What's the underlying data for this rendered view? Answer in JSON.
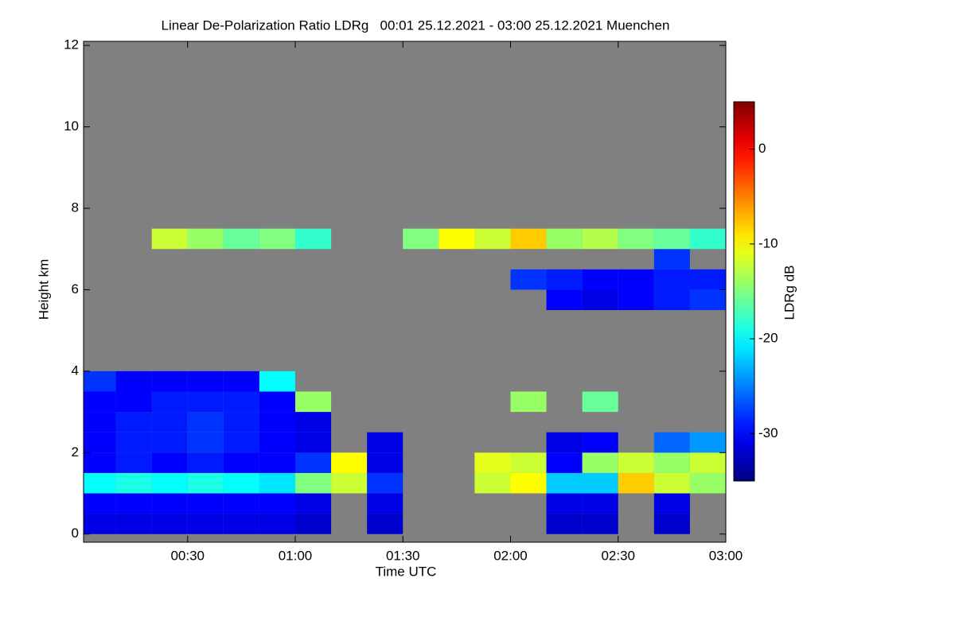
{
  "chart_data": {
    "type": "heatmap",
    "title": "Linear De-Polarization Ratio LDRg   00:01 25.12.2021 - 03:00 25.12.2021 Muenchen",
    "xlabel": "Time UTC",
    "ylabel": "Height km",
    "colorbar_label": "LDRg dB",
    "xlim": [
      1,
      180
    ],
    "ylim": [
      -0.2,
      12.1
    ],
    "zlim": [
      -35,
      5
    ],
    "xticks": [
      {
        "value": 30,
        "label": "00:30"
      },
      {
        "value": 60,
        "label": "01:00"
      },
      {
        "value": 90,
        "label": "01:30"
      },
      {
        "value": 120,
        "label": "02:00"
      },
      {
        "value": 150,
        "label": "02:30"
      },
      {
        "value": 180,
        "label": "03:00"
      }
    ],
    "yticks": [
      0,
      2,
      4,
      6,
      8,
      10,
      12
    ],
    "colorbar_ticks": [
      0,
      -10,
      -20,
      -30
    ],
    "colormap": "jet",
    "background_color": "#808080",
    "x_bins": [
      1,
      10,
      20,
      30,
      40,
      50,
      60,
      70,
      80,
      90,
      100,
      110,
      120,
      130,
      140,
      150,
      160,
      170,
      180
    ],
    "y_bins": [
      0,
      0.5,
      1,
      1.5,
      2,
      2.5,
      3,
      3.5,
      4,
      4.5,
      5,
      5.5,
      6,
      6.5,
      7,
      7.5,
      8
    ],
    "z": [
      [
        -31,
        -31,
        -31,
        -31,
        -31,
        -31,
        -32,
        null,
        -32,
        null,
        null,
        null,
        null,
        -32,
        -32,
        null,
        -32,
        null
      ],
      [
        -30,
        -30,
        -30,
        -30,
        -30,
        -30,
        -31,
        null,
        -31,
        null,
        null,
        null,
        null,
        -31,
        -31,
        null,
        -31,
        null
      ],
      [
        -20,
        -19,
        -20,
        -19,
        -20,
        -21,
        -15,
        -12,
        -28,
        null,
        null,
        -12,
        -10,
        -22,
        -22,
        -8,
        -12,
        -14
      ],
      [
        -30,
        -29,
        -30,
        -29,
        -30,
        -30,
        -28,
        -10,
        -31,
        null,
        null,
        -11,
        -12,
        -30,
        -14,
        -12,
        -14,
        -12
      ],
      [
        -30,
        -29,
        -29,
        -28,
        -29,
        -30,
        -31,
        null,
        -31,
        null,
        null,
        null,
        null,
        -31,
        -30,
        null,
        -26,
        -24
      ],
      [
        -30,
        -29,
        -29,
        -28,
        -29,
        -30,
        -31,
        null,
        null,
        null,
        null,
        null,
        null,
        null,
        null,
        null,
        null,
        null
      ],
      [
        -30,
        -30,
        -29,
        -29,
        -29,
        -30,
        -14,
        null,
        null,
        null,
        null,
        null,
        -14,
        null,
        -16,
        null,
        null,
        null
      ],
      [
        -28,
        -30,
        -30,
        -30,
        -30,
        -20,
        null,
        null,
        null,
        null,
        null,
        null,
        null,
        null,
        null,
        null,
        null,
        null
      ],
      [
        null,
        null,
        null,
        null,
        null,
        null,
        null,
        null,
        null,
        null,
        null,
        null,
        null,
        null,
        null,
        null,
        null,
        null
      ],
      [
        null,
        null,
        null,
        null,
        null,
        null,
        null,
        null,
        null,
        null,
        null,
        null,
        null,
        null,
        null,
        null,
        null,
        null
      ],
      [
        null,
        null,
        null,
        null,
        null,
        null,
        null,
        null,
        null,
        null,
        null,
        null,
        null,
        null,
        null,
        null,
        null,
        null
      ],
      [
        null,
        null,
        null,
        null,
        null,
        null,
        null,
        null,
        null,
        null,
        null,
        null,
        null,
        -30,
        -31,
        -30,
        -29,
        -28
      ],
      [
        null,
        null,
        null,
        null,
        null,
        null,
        null,
        null,
        null,
        null,
        null,
        null,
        -28,
        -29,
        -30,
        -30,
        -29,
        -29
      ],
      [
        null,
        null,
        null,
        null,
        null,
        null,
        null,
        null,
        null,
        null,
        null,
        null,
        null,
        null,
        null,
        null,
        -28,
        null
      ],
      [
        null,
        null,
        -12,
        -14,
        -16,
        -15,
        -18,
        null,
        null,
        -15,
        -10,
        -12,
        -8,
        -14,
        -13,
        -15,
        -16,
        -18
      ],
      [
        null,
        null,
        null,
        null,
        null,
        null,
        null,
        null,
        null,
        null,
        null,
        null,
        null,
        null,
        null,
        null,
        null,
        null
      ]
    ]
  }
}
